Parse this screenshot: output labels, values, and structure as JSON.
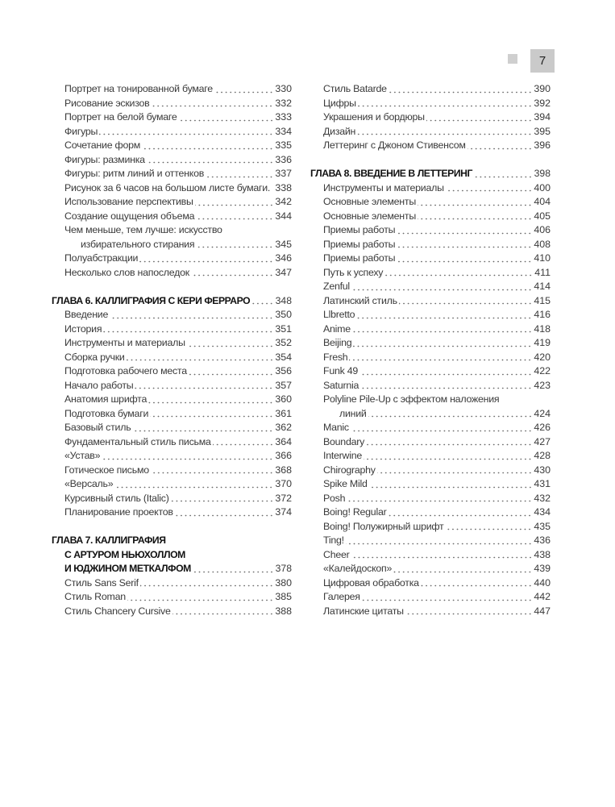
{
  "page_number": "7",
  "colors": {
    "page_box": "#cacaca",
    "square": "#cfcfcf"
  },
  "columns": [
    {
      "sections": [
        {
          "heading": null,
          "items": [
            {
              "label": "Портрет на тонированной бумаге",
              "page": "330"
            },
            {
              "label": "Рисование эскизов",
              "page": "332"
            },
            {
              "label": "Портрет на белой бумаге",
              "page": "333"
            },
            {
              "label": "Фигуры",
              "page": "334"
            },
            {
              "label": "Сочетание форм",
              "page": "335"
            },
            {
              "label": "Фигуры: разминка",
              "page": "336"
            },
            {
              "label": "Фигуры: ритм линий и оттенков",
              "page": "337"
            },
            {
              "label": "Рисунок за 6 часов на большом листе бумаги.",
              "page": "338"
            },
            {
              "label": "Использование перспективы",
              "page": "342"
            },
            {
              "label": "Создание ощущения объема",
              "page": "344"
            },
            {
              "label": "Чем меньше, тем лучше: искусство",
              "cont": "избирательного стирания",
              "page": "345"
            },
            {
              "label": "Полуабстракции",
              "page": "346"
            },
            {
              "label": "Несколько слов напоследок",
              "page": "347"
            }
          ]
        },
        {
          "heading": {
            "lines": [
              "ГЛАВА 6. КАЛЛИГРАФИЯ С КЕРИ ФЕРРАРО"
            ],
            "page": "348"
          },
          "items": [
            {
              "label": "Введение",
              "page": "350"
            },
            {
              "label": "История",
              "page": "351"
            },
            {
              "label": "Инструменты и материалы",
              "page": "352"
            },
            {
              "label": "Сборка ручки",
              "page": "354"
            },
            {
              "label": "Подготовка рабочего места",
              "page": "356"
            },
            {
              "label": "Начало работы",
              "page": "357"
            },
            {
              "label": "Анатомия шрифта",
              "page": "360"
            },
            {
              "label": "Подготовка бумаги",
              "page": "361"
            },
            {
              "label": "Базовый стиль",
              "page": "362"
            },
            {
              "label": "Фундаментальный стиль письма",
              "page": "364"
            },
            {
              "label": "«Устав»",
              "page": "366"
            },
            {
              "label": "Готическое письмо",
              "page": "368"
            },
            {
              "label": "«Версаль»",
              "page": "370"
            },
            {
              "label": "Курсивный стиль (Italic)",
              "page": "372"
            },
            {
              "label": "Планирование проектов",
              "page": "374"
            }
          ]
        },
        {
          "heading": {
            "lines": [
              "ГЛАВА 7. КАЛЛИГРАФИЯ",
              "С АРТУРОМ НЬЮХОЛЛОМ",
              "И ЮДЖИНОМ МЕТКАЛФОМ"
            ],
            "page": "378"
          },
          "items": [
            {
              "label": "Стиль Sans Serif",
              "page": "380"
            },
            {
              "label": "Стиль Roman",
              "page": "385"
            },
            {
              "label": "Стиль Chancery Cursive",
              "page": "388"
            }
          ]
        }
      ]
    },
    {
      "sections": [
        {
          "heading": null,
          "items": [
            {
              "label": "Стиль Batarde",
              "page": "390"
            },
            {
              "label": "Цифры",
              "page": "392"
            },
            {
              "label": "Украшения и бордюры",
              "page": "394"
            },
            {
              "label": "Дизайн",
              "page": "395"
            },
            {
              "label": "Леттеринг с Джоном Стивенсом",
              "page": "396"
            }
          ]
        },
        {
          "heading": {
            "lines": [
              "ГЛАВА 8. ВВЕДЕНИЕ В ЛЕТТЕРИНГ"
            ],
            "page": "398"
          },
          "items": [
            {
              "label": "Инструменты и материалы",
              "page": "400"
            },
            {
              "label": "Основные элементы",
              "page": "404"
            },
            {
              "label": "Основные элементы",
              "page": "405"
            },
            {
              "label": "Приемы работы",
              "page": "406"
            },
            {
              "label": "Приемы работы",
              "page": "408"
            },
            {
              "label": "Приемы работы",
              "page": "410"
            },
            {
              "label": "Путь к успеху",
              "page": "411"
            },
            {
              "label": "Zenful",
              "page": "414"
            },
            {
              "label": "Латинский стиль",
              "page": "415"
            },
            {
              "label": "Llbretto",
              "page": "416"
            },
            {
              "label": "Anime",
              "page": "418"
            },
            {
              "label": "Beijing",
              "page": "419"
            },
            {
              "label": "Fresh",
              "page": "420"
            },
            {
              "label": "Funk 49",
              "page": "422"
            },
            {
              "label": "Saturnia",
              "page": "423"
            },
            {
              "label": "Polyline Pile-Up с эффектом наложения",
              "cont": "линий",
              "page": "424"
            },
            {
              "label": "Manic",
              "page": "426"
            },
            {
              "label": "Boundary",
              "page": "427"
            },
            {
              "label": "Interwine",
              "page": "428"
            },
            {
              "label": "Chirography",
              "page": "430"
            },
            {
              "label": "Spike Mild",
              "page": "431"
            },
            {
              "label": "Posh",
              "page": "432"
            },
            {
              "label": "Boing! Regular",
              "page": "434"
            },
            {
              "label": "Boing! Полужирный шрифт",
              "page": "435"
            },
            {
              "label": "Ting!",
              "page": "436"
            },
            {
              "label": "Cheer",
              "page": "438"
            },
            {
              "label": "«Калейдоскоп»",
              "page": "439"
            },
            {
              "label": "Цифровая обработка",
              "page": "440"
            },
            {
              "label": "Галерея",
              "page": "442"
            },
            {
              "label": "Латинские цитаты",
              "page": "447"
            }
          ]
        }
      ]
    }
  ]
}
